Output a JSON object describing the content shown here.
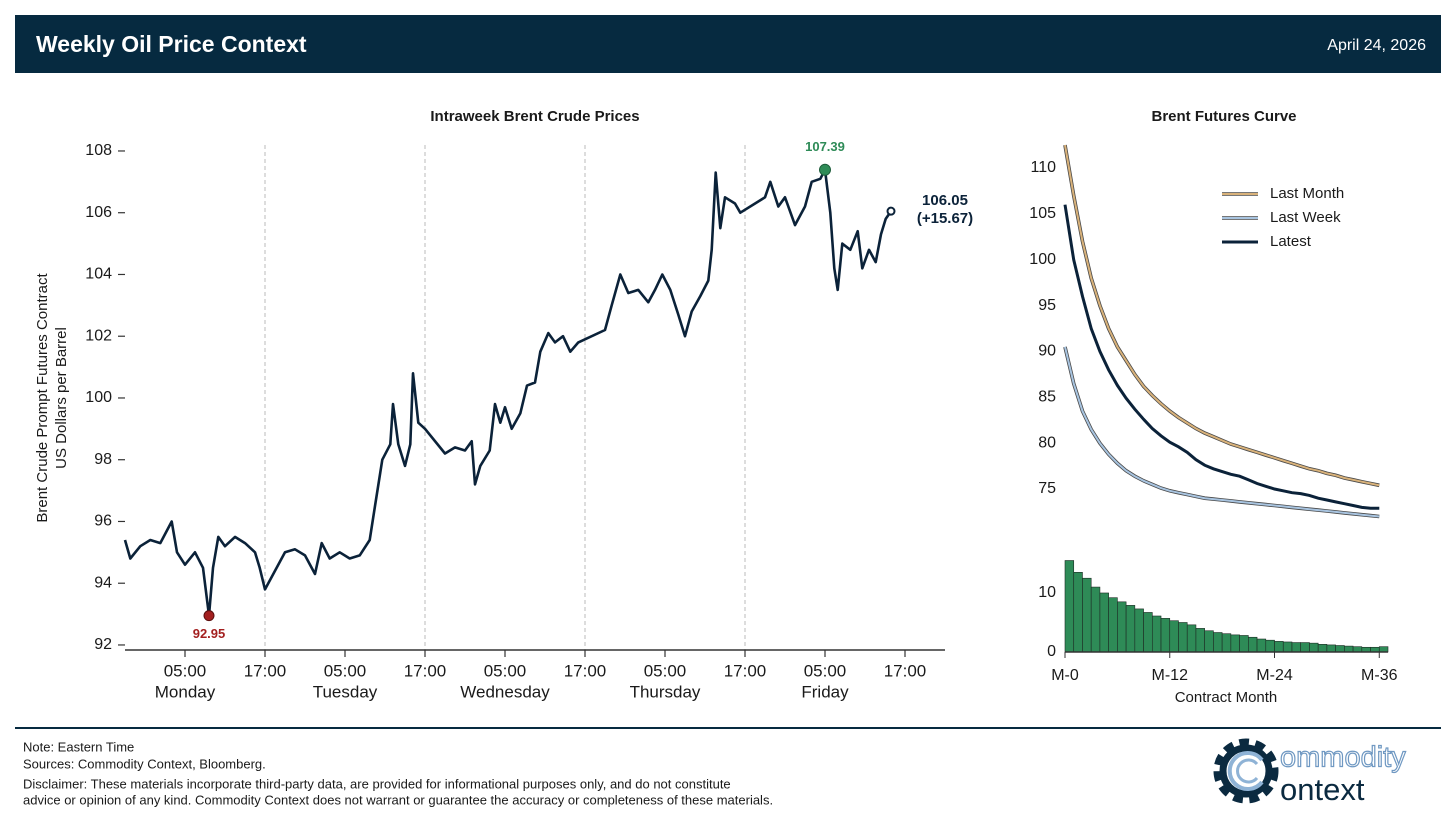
{
  "header": {
    "title": "Weekly Oil Price Context",
    "date": "April 24, 2026"
  },
  "chart_data": [
    {
      "type": "line",
      "title": "Intraweek Brent Crude Prices",
      "ylabel": [
        "Brent Crude Prompt Futures Contract",
        "US Dollars per Barrel"
      ],
      "xlim": [
        -4,
        119
      ],
      "ylim": [
        91.85,
        108.2
      ],
      "yticks": [
        92,
        94,
        96,
        98,
        100,
        102,
        104,
        106,
        108
      ],
      "xticks": [
        {
          "value": 5,
          "label": "05:00"
        },
        {
          "value": 17,
          "label": "17:00"
        },
        {
          "value": 29,
          "label": "05:00"
        },
        {
          "value": 41,
          "label": "17:00"
        },
        {
          "value": 53,
          "label": "05:00"
        },
        {
          "value": 65,
          "label": "17:00"
        },
        {
          "value": 77,
          "label": "05:00"
        },
        {
          "value": 89,
          "label": "17:00"
        },
        {
          "value": 101,
          "label": "05:00"
        },
        {
          "value": 113,
          "label": "17:00"
        }
      ],
      "xtick_days": [
        {
          "value": 5,
          "label": "Monday"
        },
        {
          "value": 29,
          "label": "Tuesday"
        },
        {
          "value": 53,
          "label": "Wednesday"
        },
        {
          "value": 77,
          "label": "Thursday"
        },
        {
          "value": 101,
          "label": "Friday"
        }
      ],
      "xgrid": [
        17,
        41,
        65,
        89
      ],
      "x": [
        -4,
        -3.2,
        -1.7,
        -0.2,
        1.3,
        3,
        3.8,
        5,
        6.5,
        7.7,
        8.6,
        9.2,
        10,
        11,
        12.5,
        14,
        15.5,
        16.2,
        17,
        20,
        21.5,
        23,
        24.5,
        25.5,
        26.7,
        28.2,
        29.7,
        31.2,
        32.7,
        33.5,
        34.6,
        35.8,
        36.2,
        37,
        38,
        38.8,
        39.2,
        40,
        41,
        44,
        45.5,
        47,
        48,
        48.5,
        49.3,
        50.7,
        51.5,
        52.3,
        53,
        54,
        55.3,
        56.3,
        57.5,
        58.3,
        59.5,
        60.5,
        61.7,
        62.8,
        64,
        68,
        69,
        70.3,
        71.5,
        73,
        74.5,
        75.5,
        76.6,
        77.8,
        79,
        80,
        81,
        82.3,
        83.5,
        84,
        84.6,
        85.3,
        86,
        87.5,
        88.3,
        92,
        92.8,
        94,
        95,
        96.5,
        98,
        99,
        100.3,
        101,
        101.8,
        102.4,
        102.9,
        103.6,
        104.8,
        105.9,
        106.6,
        107.6,
        108.6,
        109.4,
        110.1,
        110.9
      ],
      "series": [
        {
          "name": "Brent",
          "color": "#0b2239",
          "values": [
            95.4,
            94.8,
            95.2,
            95.4,
            95.3,
            96.0,
            95.0,
            94.6,
            95.0,
            94.5,
            92.95,
            94.5,
            95.5,
            95.2,
            95.5,
            95.3,
            95.0,
            94.5,
            93.8,
            95.0,
            95.1,
            94.9,
            94.3,
            95.3,
            94.8,
            95.0,
            94.8,
            94.9,
            95.4,
            96.5,
            98.0,
            98.5,
            99.8,
            98.5,
            97.8,
            98.5,
            100.8,
            99.2,
            99.0,
            98.2,
            98.4,
            98.3,
            98.6,
            97.2,
            97.8,
            98.3,
            99.8,
            99.2,
            99.7,
            99.0,
            99.5,
            100.4,
            100.5,
            101.5,
            102.1,
            101.8,
            102.0,
            101.5,
            101.8,
            102.2,
            103.0,
            104.0,
            103.4,
            103.5,
            103.1,
            103.5,
            104.0,
            103.5,
            102.7,
            102.0,
            102.8,
            103.3,
            103.8,
            104.8,
            107.3,
            105.5,
            106.5,
            106.3,
            106.0,
            106.5,
            107.0,
            106.2,
            106.5,
            105.6,
            106.2,
            107.0,
            107.1,
            107.39,
            106.0,
            104.2,
            103.5,
            105.0,
            104.8,
            105.4,
            104.2,
            104.8,
            104.4,
            105.3,
            105.8,
            106.05
          ]
        }
      ],
      "min": {
        "x": 8.6,
        "y": 92.95,
        "color": "#a31f1f"
      },
      "max": {
        "x": 101,
        "y": 107.39,
        "color": "#2e8b57"
      },
      "last": {
        "x": 110.9,
        "y": 106.05,
        "change_label": "(+15.67)"
      }
    },
    {
      "type": "line",
      "title": "Brent Futures Curve",
      "legend": "upper right",
      "xlim": [
        0,
        37
      ],
      "ylim": [
        71,
        112.5
      ],
      "yticks": [
        75,
        80,
        85,
        90,
        95,
        100,
        105,
        110
      ],
      "x": [
        0,
        1,
        2,
        3,
        4,
        5,
        6,
        7,
        8,
        9,
        10,
        11,
        12,
        13,
        14,
        15,
        16,
        17,
        18,
        19,
        20,
        21,
        22,
        23,
        24,
        25,
        26,
        27,
        28,
        29,
        30,
        31,
        32,
        33,
        34,
        35,
        36
      ],
      "series": [
        {
          "name": "Last Month",
          "color": "#d9b27a",
          "values": [
            112.5,
            107,
            102,
            98,
            95,
            92.5,
            90.5,
            89,
            87.5,
            86.2,
            85.2,
            84.3,
            83.5,
            82.8,
            82.2,
            81.6,
            81.1,
            80.7,
            80.3,
            79.9,
            79.6,
            79.3,
            79.0,
            78.7,
            78.4,
            78.1,
            77.8,
            77.5,
            77.2,
            77.0,
            76.7,
            76.5,
            76.2,
            76.0,
            75.8,
            75.6,
            75.4
          ]
        },
        {
          "name": "Last Week",
          "color": "#a8c4e0",
          "values": [
            90.5,
            86.5,
            83.5,
            81.5,
            80,
            78.8,
            77.8,
            77,
            76.4,
            75.9,
            75.5,
            75.1,
            74.8,
            74.6,
            74.4,
            74.2,
            74.0,
            73.9,
            73.8,
            73.7,
            73.6,
            73.5,
            73.4,
            73.3,
            73.2,
            73.1,
            73.0,
            72.9,
            72.8,
            72.7,
            72.6,
            72.5,
            72.4,
            72.3,
            72.2,
            72.1,
            72.0
          ]
        },
        {
          "name": "Latest",
          "color": "#0b2239",
          "values": [
            106,
            100,
            96,
            92.5,
            90,
            88,
            86.3,
            84.9,
            83.7,
            82.6,
            81.6,
            80.8,
            80.1,
            79.6,
            79.0,
            78.2,
            77.6,
            77.2,
            76.9,
            76.6,
            76.4,
            76.0,
            75.6,
            75.3,
            75.0,
            74.8,
            74.6,
            74.5,
            74.3,
            74.0,
            73.8,
            73.6,
            73.4,
            73.2,
            73.0,
            72.9,
            72.9
          ]
        }
      ]
    },
    {
      "type": "bar",
      "xlabel": "Contract Month",
      "xlim": [
        0,
        37
      ],
      "ylim": [
        0,
        16.4
      ],
      "yticks": [
        0,
        10
      ],
      "color": "#2e8b57",
      "xticks": [
        {
          "value": 0,
          "label": "M-0"
        },
        {
          "value": 12,
          "label": "M-12"
        },
        {
          "value": 24,
          "label": "M-24"
        },
        {
          "value": 36,
          "label": "M-36"
        }
      ],
      "x": [
        0,
        1,
        2,
        3,
        4,
        5,
        6,
        7,
        8,
        9,
        10,
        11,
        12,
        13,
        14,
        15,
        16,
        17,
        18,
        19,
        20,
        21,
        22,
        23,
        24,
        25,
        26,
        27,
        28,
        29,
        30,
        31,
        32,
        33,
        34,
        35,
        36
      ],
      "values": [
        15.5,
        13.5,
        12.5,
        11,
        10,
        9.2,
        8.5,
        7.9,
        7.3,
        6.7,
        6.1,
        5.7,
        5.3,
        5.0,
        4.6,
        4.0,
        3.6,
        3.3,
        3.1,
        2.9,
        2.8,
        2.5,
        2.2,
        2.0,
        1.8,
        1.7,
        1.6,
        1.6,
        1.5,
        1.3,
        1.2,
        1.1,
        1.0,
        0.9,
        0.8,
        0.8,
        0.9
      ]
    }
  ],
  "footer": {
    "lines": [
      "Note: Eastern Time",
      "Sources: Commodity Context, Bloomberg.",
      "Disclaimer: These materials incorporate third-party data, are provided for informational purposes only, and do not constitute",
      "advice or opinion of any kind. Commodity Context does not warrant or guarantee the accuracy or completeness of these materials."
    ]
  },
  "logo": {
    "line1": "ommodity",
    "line2": "ontext"
  }
}
